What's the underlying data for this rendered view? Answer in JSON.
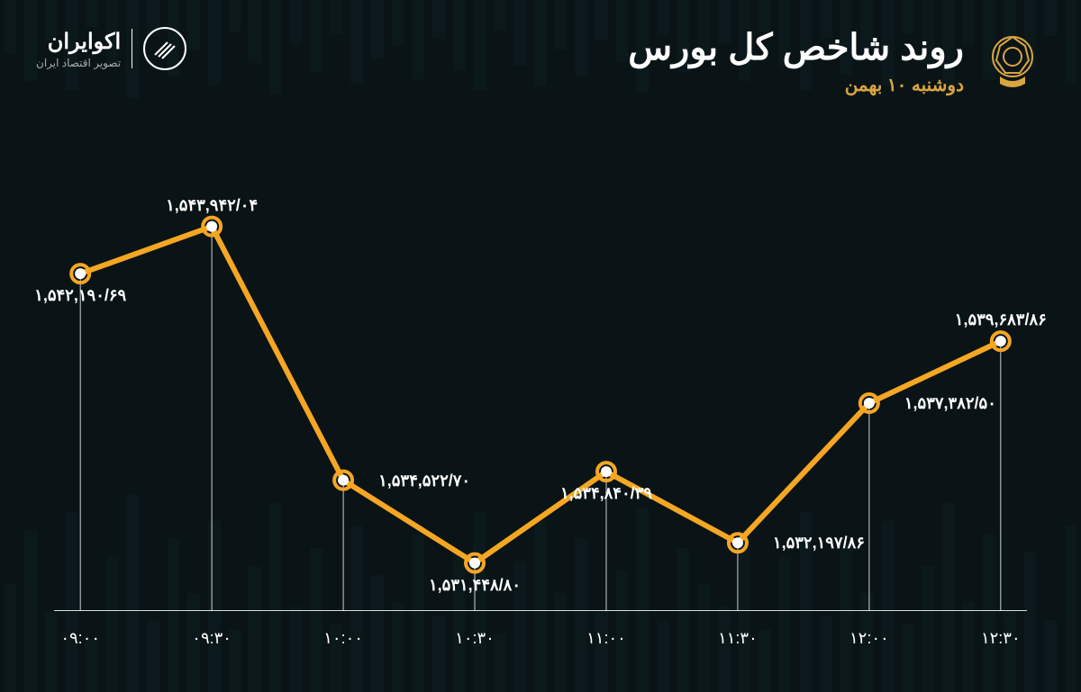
{
  "brand": {
    "name": "اکوایران",
    "tagline": "تصویر اقتصاد ایران"
  },
  "title": "روند شاخص کل بورس",
  "subtitle": "دوشنبه ۱۰ بهمن",
  "subtitle_color": "#d9a441",
  "chart": {
    "type": "line",
    "line_color": "#f5a623",
    "point_fill": "#ffffff",
    "background": "#0a1416",
    "x_labels": [
      "۰۹:۰۰",
      "۰۹:۳۰",
      "۱۰:۰۰",
      "۱۰:۳۰",
      "۱۱:۰۰",
      "۱۱:۳۰",
      "۱۲:۰۰",
      "۱۲:۳۰"
    ],
    "values": [
      1542190.69,
      1543942.04,
      1534522.7,
      1531448.8,
      1534840.39,
      1532197.86,
      1537382.5,
      1539683.86
    ],
    "value_labels": [
      "۱,۵۴۲,۱۹۰/۶۹",
      "۱,۵۴۳,۹۴۲/۰۴",
      "۱,۵۳۴,۵۲۲/۷۰",
      "۱,۵۳۱,۴۴۸/۸۰",
      "۱,۵۳۴,۸۴۰/۳۹",
      "۱,۵۳۲,۱۹۷/۸۶",
      "۱,۵۳۷,۳۸۲/۵۰",
      "۱,۵۳۹,۶۸۳/۸۶"
    ],
    "label_position": [
      "below",
      "above",
      "right",
      "below",
      "below",
      "right",
      "right",
      "above"
    ],
    "y_min": 1530000,
    "y_max": 1545000,
    "line_width": 6,
    "point_radius": 8,
    "label_fontsize": 18,
    "axis_fontsize": 18
  },
  "bg_bars": {
    "color": "#1a3a3f",
    "opacity": 0.15,
    "heights": [
      120,
      180,
      90,
      200,
      60,
      150,
      220,
      80,
      170,
      110,
      190,
      70,
      140,
      210,
      95,
      160,
      75,
      185,
      130,
      100,
      175,
      85,
      155,
      200,
      65,
      145,
      190,
      110,
      170,
      90,
      135,
      205,
      80,
      160,
      120,
      95,
      180,
      70,
      150,
      200,
      85,
      165,
      110,
      190,
      75,
      140,
      210,
      100,
      175,
      90,
      155,
      80,
      185
    ]
  }
}
